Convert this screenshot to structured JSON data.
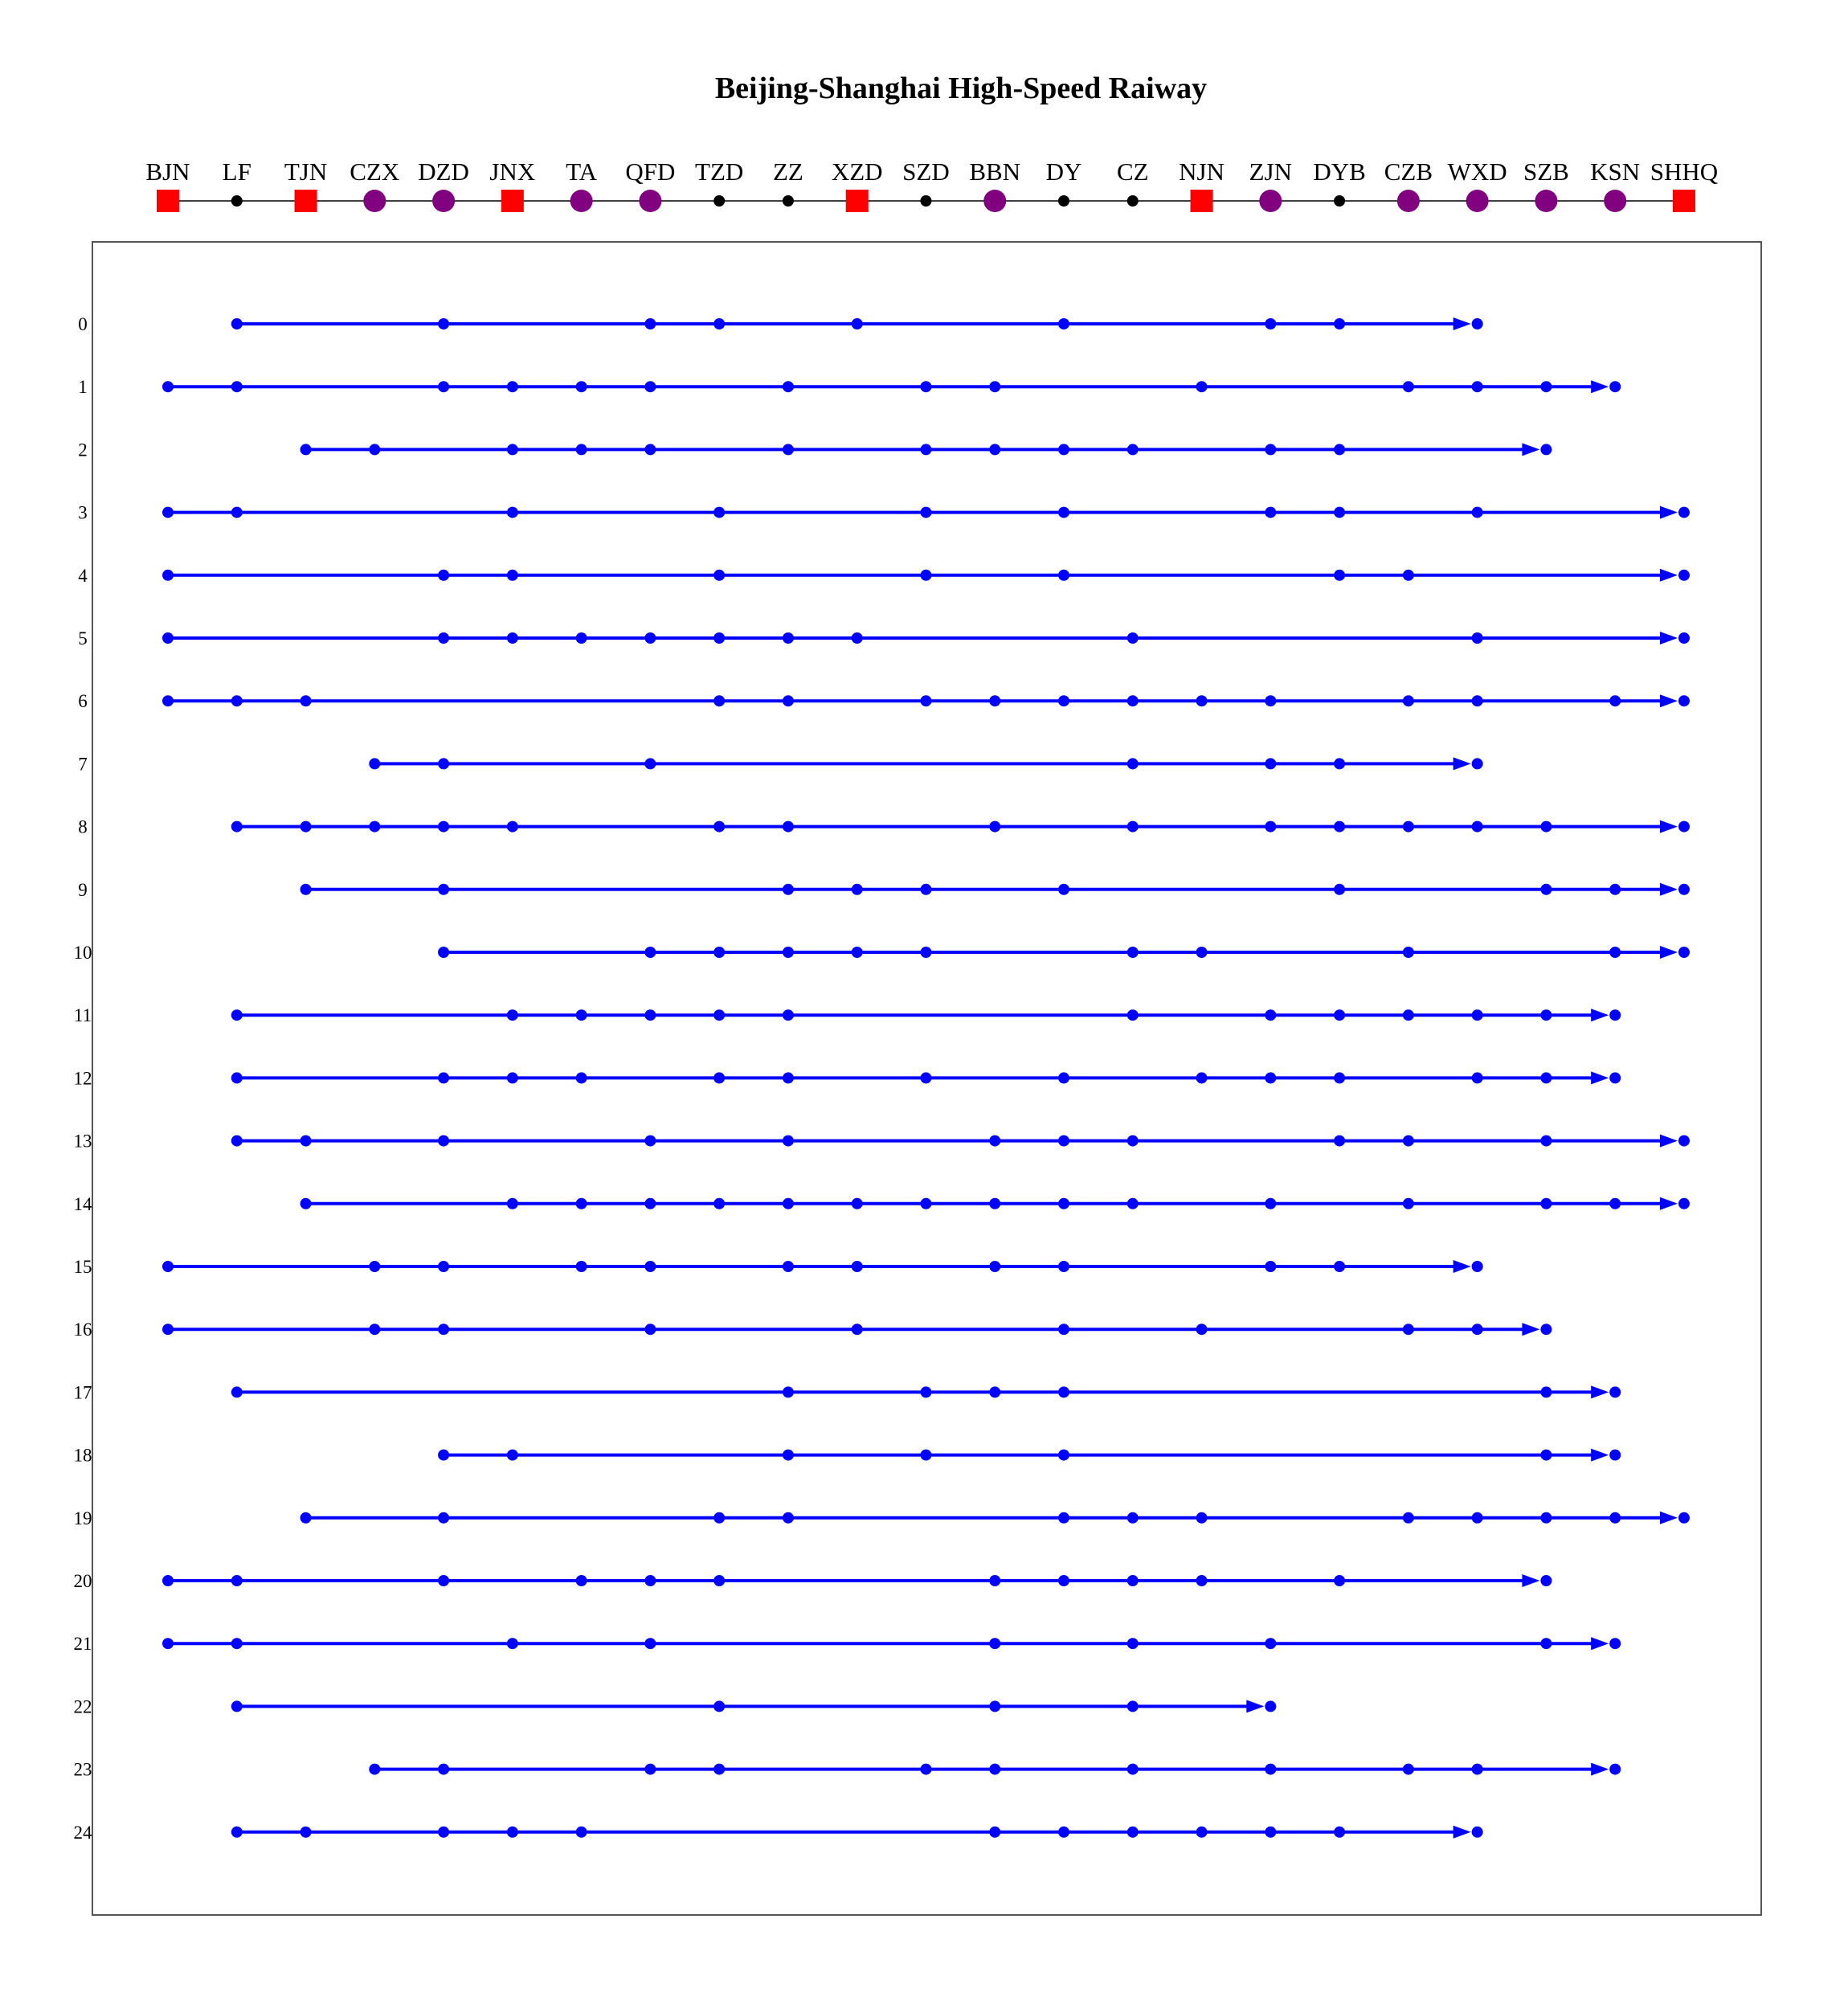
{
  "title": "Beijing-Shanghai High-Speed Raiway",
  "colors": {
    "major_station": "#ff0000",
    "mid_station": "#800080",
    "minor_station": "#000000",
    "train_line": "#0000ff",
    "frame": "#555555"
  },
  "stations": [
    {
      "code": "BJN",
      "kind": "major"
    },
    {
      "code": "LF",
      "kind": "minor"
    },
    {
      "code": "TJN",
      "kind": "major"
    },
    {
      "code": "CZX",
      "kind": "mid"
    },
    {
      "code": "DZD",
      "kind": "mid"
    },
    {
      "code": "JNX",
      "kind": "major"
    },
    {
      "code": "TA",
      "kind": "mid"
    },
    {
      "code": "QFD",
      "kind": "mid"
    },
    {
      "code": "TZD",
      "kind": "minor"
    },
    {
      "code": "ZZ",
      "kind": "minor"
    },
    {
      "code": "XZD",
      "kind": "major"
    },
    {
      "code": "SZD",
      "kind": "minor"
    },
    {
      "code": "BBN",
      "kind": "mid"
    },
    {
      "code": "DY",
      "kind": "minor"
    },
    {
      "code": "CZ",
      "kind": "minor"
    },
    {
      "code": "NJN",
      "kind": "major"
    },
    {
      "code": "ZJN",
      "kind": "mid"
    },
    {
      "code": "DYB",
      "kind": "minor"
    },
    {
      "code": "CZB",
      "kind": "mid"
    },
    {
      "code": "WXD",
      "kind": "mid"
    },
    {
      "code": "SZB",
      "kind": "mid"
    },
    {
      "code": "KSN",
      "kind": "mid"
    },
    {
      "code": "SHHQ",
      "kind": "major"
    }
  ],
  "trains": [
    {
      "label": "0",
      "stops": [
        1,
        4,
        7,
        8,
        10,
        13,
        16,
        17,
        19
      ]
    },
    {
      "label": "1",
      "stops": [
        0,
        1,
        4,
        5,
        6,
        7,
        9,
        11,
        12,
        15,
        18,
        19,
        20,
        21
      ]
    },
    {
      "label": "2",
      "stops": [
        2,
        3,
        5,
        6,
        7,
        9,
        11,
        12,
        13,
        14,
        16,
        17,
        20
      ]
    },
    {
      "label": "3",
      "stops": [
        0,
        1,
        5,
        8,
        11,
        13,
        16,
        17,
        19,
        22
      ]
    },
    {
      "label": "4",
      "stops": [
        0,
        4,
        5,
        8,
        11,
        13,
        17,
        18,
        22
      ]
    },
    {
      "label": "5",
      "stops": [
        0,
        4,
        5,
        6,
        7,
        8,
        9,
        10,
        14,
        19,
        22
      ]
    },
    {
      "label": "6",
      "stops": [
        0,
        1,
        2,
        8,
        9,
        11,
        12,
        13,
        14,
        15,
        16,
        18,
        19,
        21,
        22
      ]
    },
    {
      "label": "7",
      "stops": [
        3,
        4,
        7,
        14,
        16,
        17,
        19
      ]
    },
    {
      "label": "8",
      "stops": [
        1,
        2,
        3,
        4,
        5,
        8,
        9,
        12,
        14,
        16,
        17,
        18,
        19,
        20,
        22
      ]
    },
    {
      "label": "9",
      "stops": [
        2,
        4,
        9,
        10,
        11,
        13,
        17,
        20,
        21,
        22
      ]
    },
    {
      "label": "10",
      "stops": [
        4,
        7,
        8,
        9,
        10,
        11,
        14,
        15,
        18,
        21,
        22
      ]
    },
    {
      "label": "11",
      "stops": [
        1,
        5,
        6,
        7,
        8,
        9,
        14,
        16,
        17,
        18,
        19,
        20,
        21
      ]
    },
    {
      "label": "12",
      "stops": [
        1,
        4,
        5,
        6,
        8,
        9,
        11,
        13,
        15,
        16,
        17,
        19,
        20,
        21
      ]
    },
    {
      "label": "13",
      "stops": [
        1,
        2,
        4,
        7,
        9,
        12,
        13,
        14,
        17,
        18,
        20,
        22
      ]
    },
    {
      "label": "14",
      "stops": [
        2,
        5,
        6,
        7,
        8,
        9,
        10,
        11,
        12,
        13,
        14,
        16,
        18,
        20,
        21,
        22
      ]
    },
    {
      "label": "15",
      "stops": [
        0,
        3,
        4,
        6,
        7,
        9,
        10,
        12,
        13,
        16,
        17,
        19
      ]
    },
    {
      "label": "16",
      "stops": [
        0,
        3,
        4,
        7,
        10,
        13,
        15,
        18,
        19,
        20
      ]
    },
    {
      "label": "17",
      "stops": [
        1,
        9,
        11,
        12,
        13,
        20,
        21
      ]
    },
    {
      "label": "18",
      "stops": [
        4,
        5,
        9,
        11,
        13,
        20,
        21
      ]
    },
    {
      "label": "19",
      "stops": [
        2,
        4,
        8,
        9,
        13,
        14,
        15,
        18,
        19,
        20,
        21,
        22
      ]
    },
    {
      "label": "20",
      "stops": [
        0,
        1,
        4,
        6,
        7,
        8,
        12,
        13,
        14,
        15,
        17,
        20
      ]
    },
    {
      "label": "21",
      "stops": [
        0,
        1,
        5,
        7,
        12,
        14,
        16,
        20,
        21
      ]
    },
    {
      "label": "22",
      "stops": [
        1,
        8,
        12,
        14,
        16
      ]
    },
    {
      "label": "23",
      "stops": [
        3,
        4,
        7,
        8,
        11,
        12,
        14,
        16,
        18,
        19,
        21
      ]
    },
    {
      "label": "24",
      "stops": [
        1,
        2,
        4,
        5,
        6,
        12,
        13,
        14,
        15,
        16,
        17,
        19
      ]
    }
  ]
}
